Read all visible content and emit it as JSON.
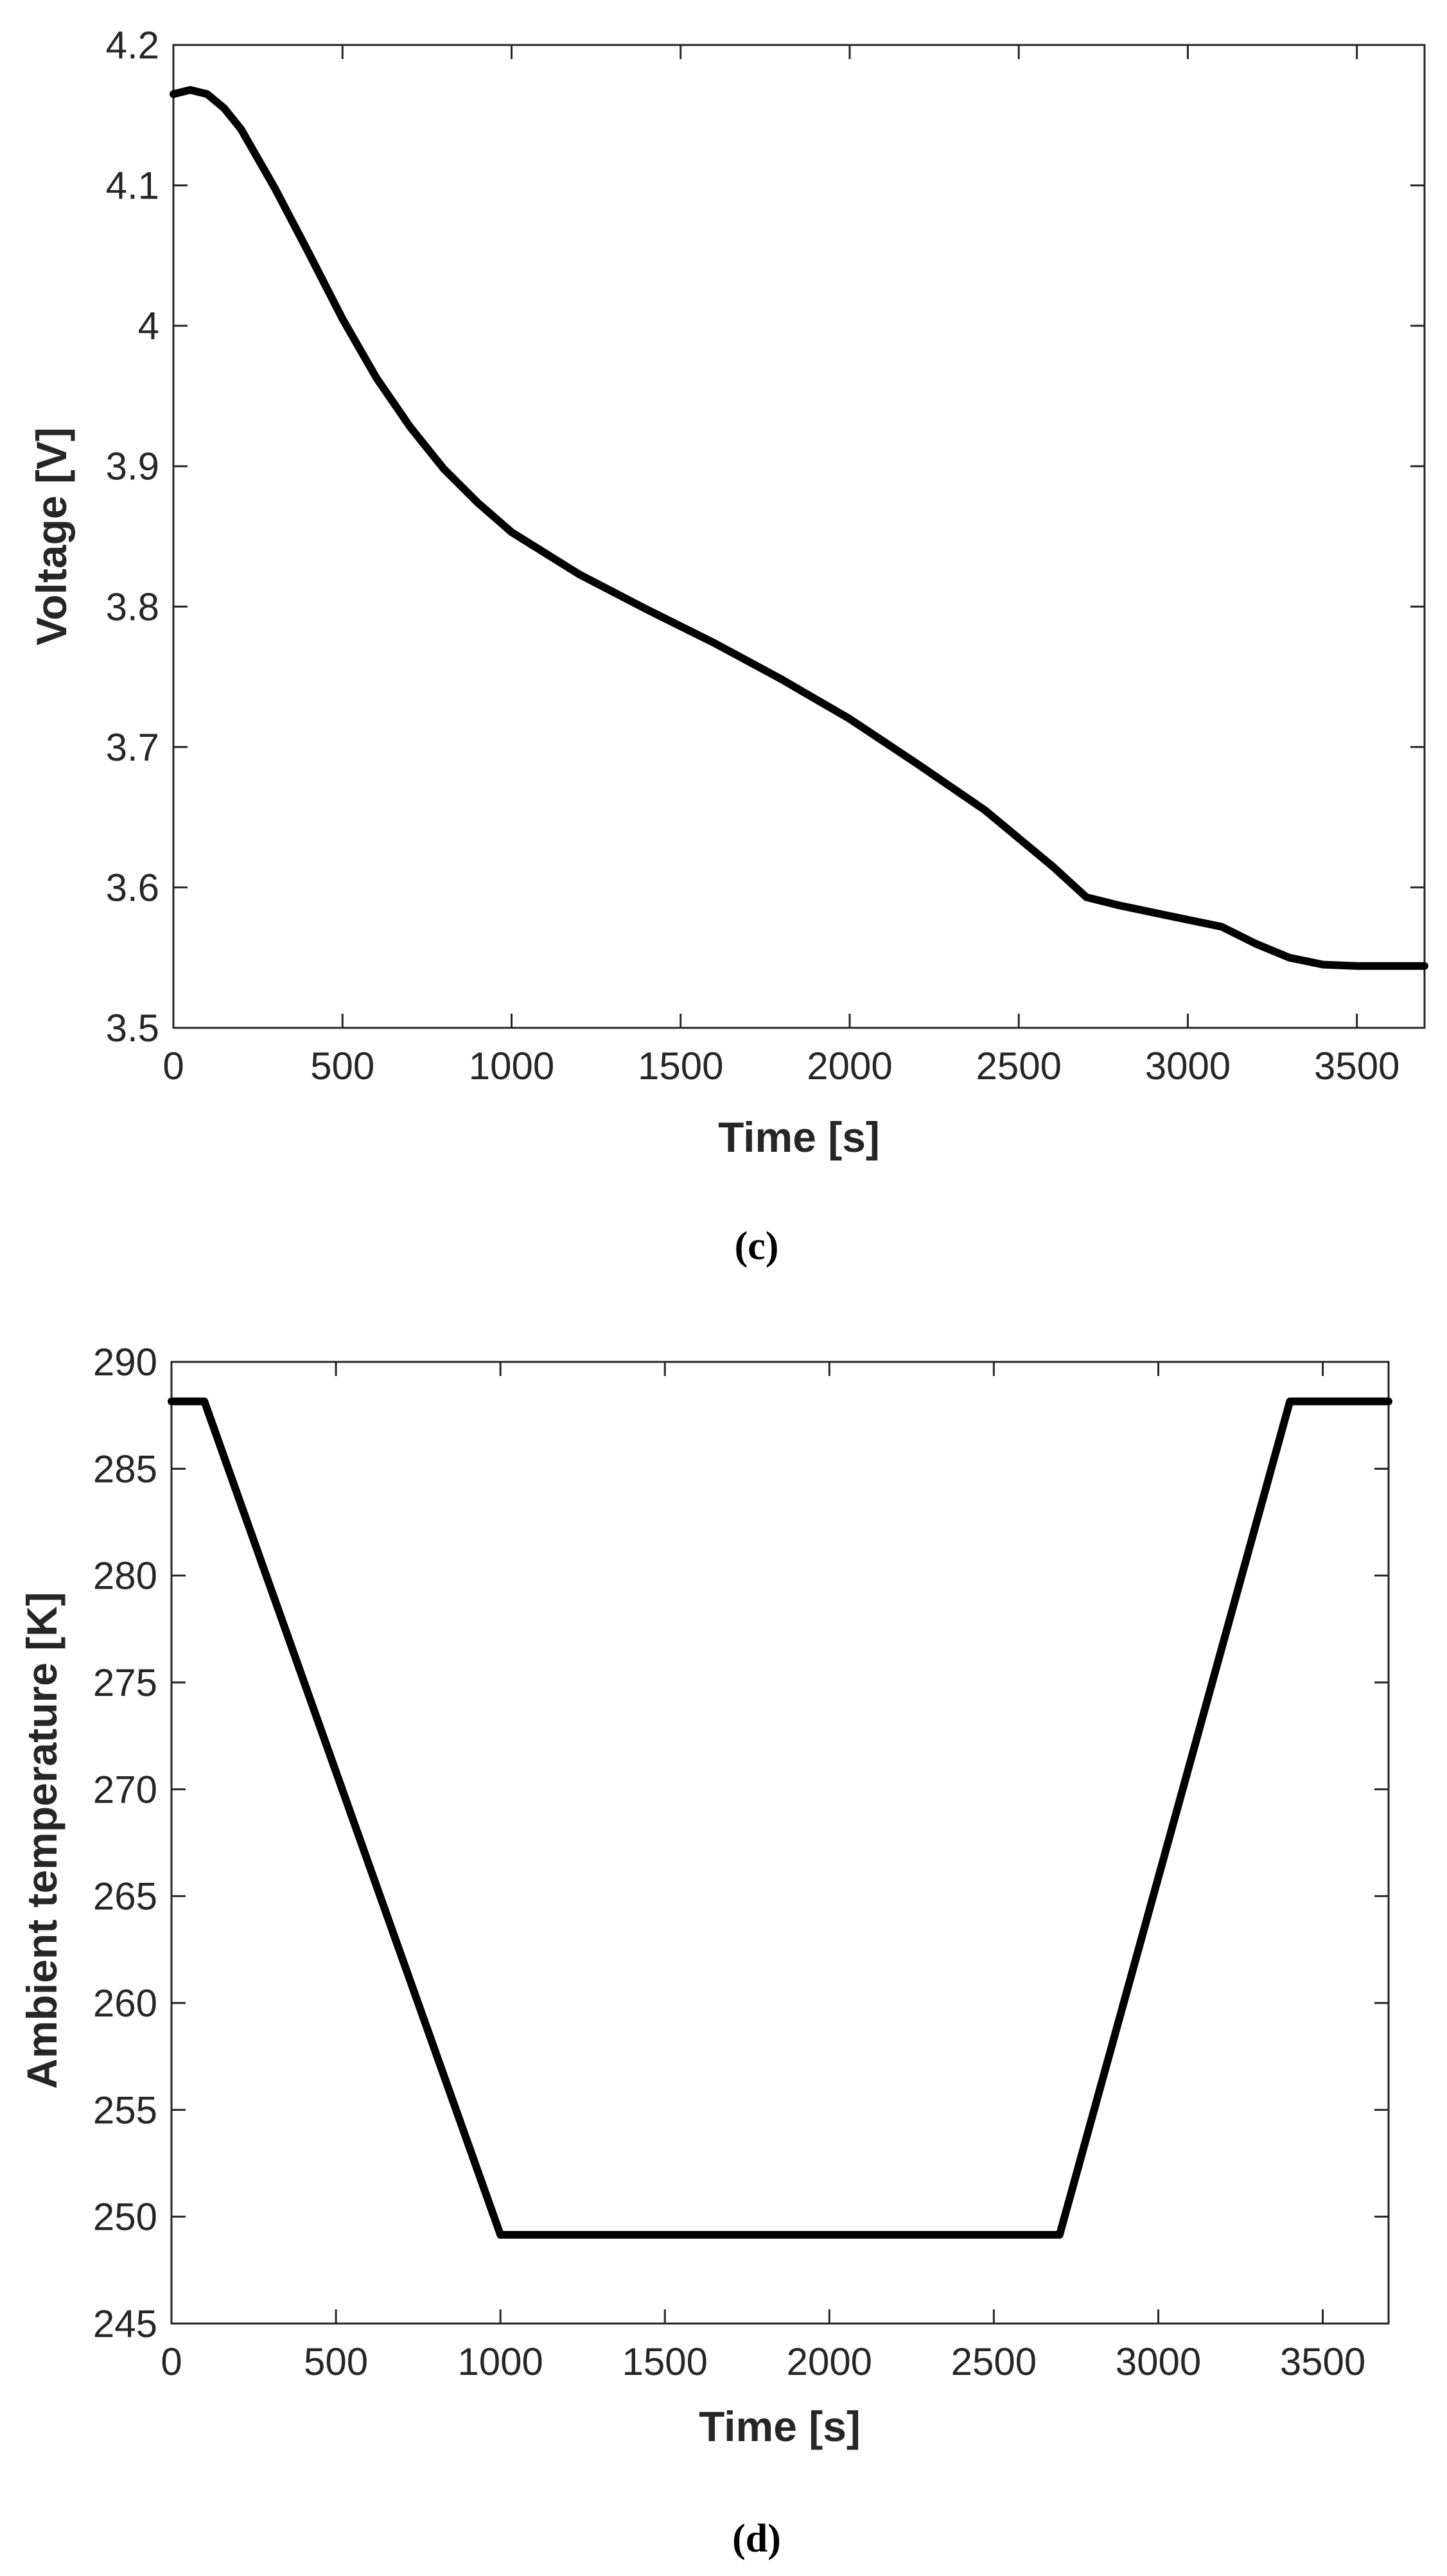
{
  "chart_data": [
    {
      "type": "line",
      "caption": "(c)",
      "xlabel": "Time [s]",
      "ylabel": "Voltage [V]",
      "xlim": [
        0,
        3700
      ],
      "ylim": [
        3.5,
        4.2
      ],
      "xticks": [
        0,
        500,
        1000,
        1500,
        2000,
        2500,
        3000,
        3500
      ],
      "yticks": [
        3.5,
        3.6,
        3.7,
        3.8,
        3.9,
        4,
        4.1,
        4.2
      ],
      "xtick_labels": [
        "0",
        "500",
        "1000",
        "1500",
        "2000",
        "2500",
        "3000",
        "3500"
      ],
      "ytick_labels": [
        "3.5",
        "3.6",
        "3.7",
        "3.8",
        "3.9",
        "4",
        "4.1",
        "4.2"
      ],
      "grid": false,
      "series": [
        {
          "x": [
            0,
            50,
            100,
            150,
            200,
            300,
            400,
            500,
            600,
            700,
            800,
            900,
            1000,
            1200,
            1400,
            1600,
            1800,
            2000,
            2200,
            2400,
            2600,
            2700,
            2800,
            3000,
            3100,
            3200,
            3300,
            3400,
            3500,
            3700
          ],
          "y": [
            4.165,
            4.168,
            4.165,
            4.155,
            4.14,
            4.098,
            4.052,
            4.005,
            3.963,
            3.928,
            3.898,
            3.874,
            3.853,
            3.823,
            3.798,
            3.774,
            3.748,
            3.72,
            3.688,
            3.655,
            3.615,
            3.593,
            3.587,
            3.577,
            3.572,
            3.56,
            3.55,
            3.545,
            3.544,
            3.544
          ]
        }
      ]
    },
    {
      "type": "line",
      "caption": "(d)",
      "xlabel": "Time [s]",
      "ylabel": "Ambient temperature [K]",
      "xlim": [
        0,
        3700
      ],
      "ylim": [
        245,
        290
      ],
      "xticks": [
        0,
        500,
        1000,
        1500,
        2000,
        2500,
        3000,
        3500
      ],
      "yticks": [
        245,
        250,
        255,
        260,
        265,
        270,
        275,
        280,
        285,
        290
      ],
      "xtick_labels": [
        "0",
        "500",
        "1000",
        "1500",
        "2000",
        "2500",
        "3000",
        "3500"
      ],
      "ytick_labels": [
        "245",
        "250",
        "255",
        "260",
        "265",
        "270",
        "275",
        "280",
        "285",
        "290"
      ],
      "grid": false,
      "series": [
        {
          "x": [
            0,
            100,
            1000,
            2700,
            3400,
            3700
          ],
          "y": [
            288.15,
            288.15,
            249.15,
            249.15,
            288.15,
            288.15
          ]
        }
      ]
    }
  ]
}
